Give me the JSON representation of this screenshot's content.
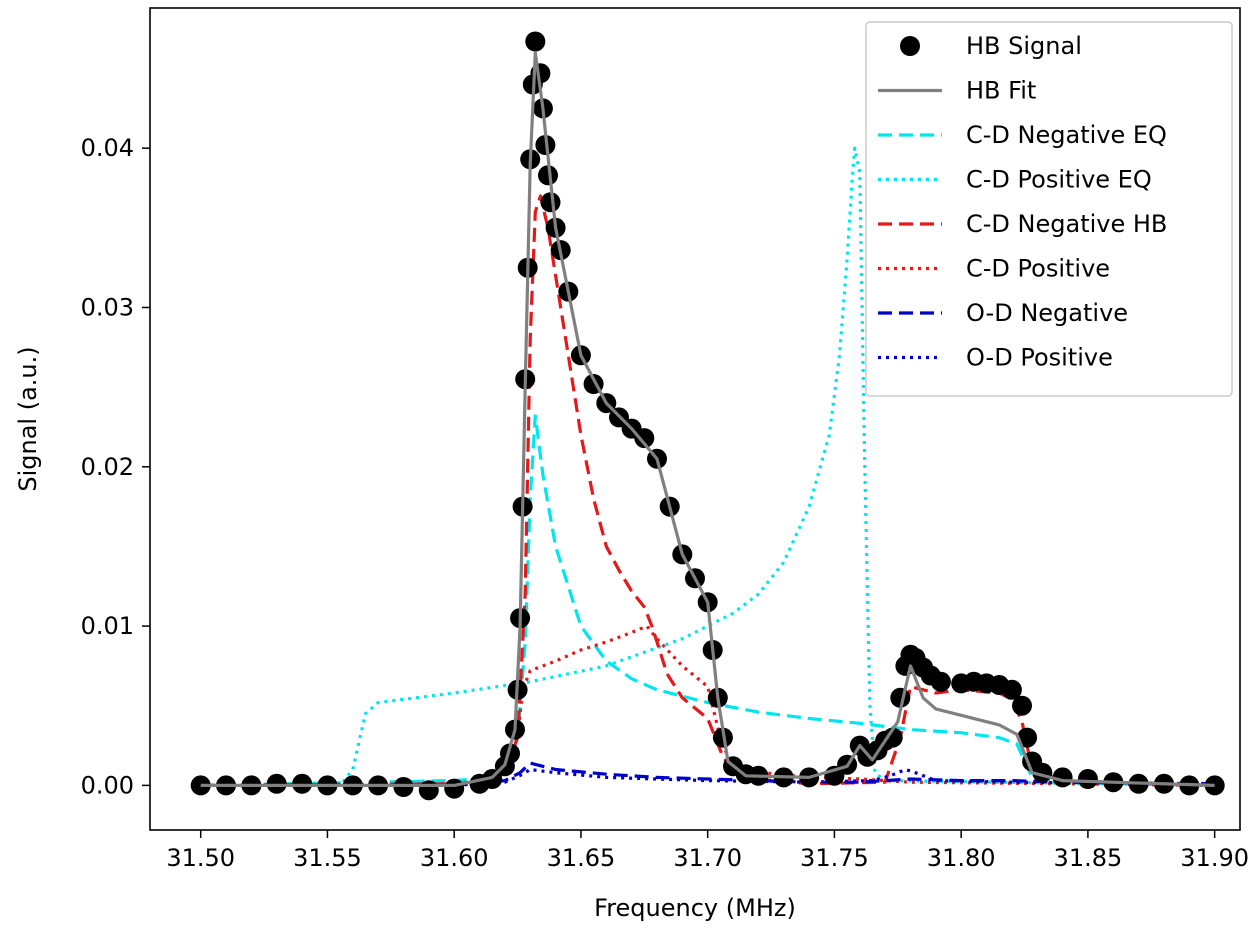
{
  "chart_data": {
    "type": "scatter",
    "xlabel": "Frequency (MHz)",
    "ylabel": "Signal (a.u.)",
    "xlim": [
      31.48,
      31.91
    ],
    "ylim": [
      -0.0028,
      0.0488
    ],
    "x_ticks": [
      31.5,
      31.55,
      31.6,
      31.65,
      31.7,
      31.75,
      31.8,
      31.85,
      31.9
    ],
    "x_tick_labels": [
      "31.50",
      "31.55",
      "31.60",
      "31.65",
      "31.70",
      "31.75",
      "31.80",
      "31.85",
      "31.90"
    ],
    "y_ticks": [
      0.0,
      0.01,
      0.02,
      0.03,
      0.04
    ],
    "y_tick_labels": [
      "0.00",
      "0.01",
      "0.02",
      "0.03",
      "0.04"
    ],
    "grid": false,
    "legend_position": "top-right",
    "series": [
      {
        "name": "HB Signal",
        "kind": "scatter",
        "color": "#000000",
        "points": [
          [
            31.5,
            0.0
          ],
          [
            31.51,
            0.0
          ],
          [
            31.52,
            0.0
          ],
          [
            31.53,
            0.0001
          ],
          [
            31.54,
            0.0001
          ],
          [
            31.55,
            0.0
          ],
          [
            31.56,
            0.0
          ],
          [
            31.57,
            0.0
          ],
          [
            31.58,
            -0.0001
          ],
          [
            31.59,
            -0.0003
          ],
          [
            31.6,
            -0.0002
          ],
          [
            31.61,
            0.0001
          ],
          [
            31.615,
            0.0004
          ],
          [
            31.62,
            0.0012
          ],
          [
            31.622,
            0.002
          ],
          [
            31.624,
            0.0035
          ],
          [
            31.625,
            0.006
          ],
          [
            31.626,
            0.0105
          ],
          [
            31.627,
            0.0175
          ],
          [
            31.628,
            0.0255
          ],
          [
            31.629,
            0.0325
          ],
          [
            31.63,
            0.0393
          ],
          [
            31.631,
            0.044
          ],
          [
            31.632,
            0.0467
          ],
          [
            31.634,
            0.0447
          ],
          [
            31.635,
            0.0425
          ],
          [
            31.636,
            0.0402
          ],
          [
            31.637,
            0.0383
          ],
          [
            31.638,
            0.0366
          ],
          [
            31.64,
            0.035
          ],
          [
            31.642,
            0.0336
          ],
          [
            31.645,
            0.031
          ],
          [
            31.65,
            0.027
          ],
          [
            31.655,
            0.0252
          ],
          [
            31.66,
            0.024
          ],
          [
            31.665,
            0.0231
          ],
          [
            31.67,
            0.0224
          ],
          [
            31.675,
            0.0218
          ],
          [
            31.68,
            0.0205
          ],
          [
            31.685,
            0.0175
          ],
          [
            31.69,
            0.0145
          ],
          [
            31.695,
            0.013
          ],
          [
            31.7,
            0.0115
          ],
          [
            31.702,
            0.0085
          ],
          [
            31.704,
            0.0055
          ],
          [
            31.706,
            0.003
          ],
          [
            31.71,
            0.0012
          ],
          [
            31.715,
            0.0007
          ],
          [
            31.72,
            0.0006
          ],
          [
            31.73,
            0.0005
          ],
          [
            31.74,
            0.0005
          ],
          [
            31.75,
            0.0006
          ],
          [
            31.755,
            0.0013
          ],
          [
            31.76,
            0.0025
          ],
          [
            31.763,
            0.0018
          ],
          [
            31.767,
            0.0022
          ],
          [
            31.77,
            0.0028
          ],
          [
            31.773,
            0.003
          ],
          [
            31.776,
            0.0055
          ],
          [
            31.778,
            0.0075
          ],
          [
            31.78,
            0.0082
          ],
          [
            31.782,
            0.008
          ],
          [
            31.785,
            0.0074
          ],
          [
            31.788,
            0.0069
          ],
          [
            31.792,
            0.0065
          ],
          [
            31.8,
            0.0064
          ],
          [
            31.805,
            0.0065
          ],
          [
            31.81,
            0.0064
          ],
          [
            31.815,
            0.0063
          ],
          [
            31.82,
            0.006
          ],
          [
            31.824,
            0.005
          ],
          [
            31.826,
            0.003
          ],
          [
            31.828,
            0.0015
          ],
          [
            31.832,
            0.0008
          ],
          [
            31.84,
            0.0005
          ],
          [
            31.85,
            0.0004
          ],
          [
            31.86,
            0.0002
          ],
          [
            31.87,
            0.0001
          ],
          [
            31.88,
            0.0001
          ],
          [
            31.89,
            0.0
          ],
          [
            31.9,
            0.0
          ]
        ]
      },
      {
        "name": "HB Fit",
        "kind": "line",
        "dash": "solid",
        "color": "#808080",
        "points": [
          [
            31.5,
            0.0
          ],
          [
            31.6,
            0.0
          ],
          [
            31.615,
            0.0005
          ],
          [
            31.62,
            0.0013
          ],
          [
            31.624,
            0.0035
          ],
          [
            31.626,
            0.01
          ],
          [
            31.628,
            0.025
          ],
          [
            31.63,
            0.039
          ],
          [
            31.632,
            0.046
          ],
          [
            31.635,
            0.0425
          ],
          [
            31.64,
            0.035
          ],
          [
            31.645,
            0.031
          ],
          [
            31.65,
            0.027
          ],
          [
            31.66,
            0.024
          ],
          [
            31.67,
            0.0224
          ],
          [
            31.68,
            0.0205
          ],
          [
            31.69,
            0.0145
          ],
          [
            31.7,
            0.0115
          ],
          [
            31.704,
            0.0055
          ],
          [
            31.708,
            0.0015
          ],
          [
            31.715,
            0.0006
          ],
          [
            31.74,
            0.0005
          ],
          [
            31.755,
            0.0012
          ],
          [
            31.76,
            0.0025
          ],
          [
            31.765,
            0.0016
          ],
          [
            31.77,
            0.0028
          ],
          [
            31.775,
            0.004
          ],
          [
            31.78,
            0.0075
          ],
          [
            31.785,
            0.0055
          ],
          [
            31.79,
            0.0048
          ],
          [
            31.8,
            0.0044
          ],
          [
            31.815,
            0.0038
          ],
          [
            31.822,
            0.0032
          ],
          [
            31.828,
            0.0008
          ],
          [
            31.84,
            0.0003
          ],
          [
            31.9,
            0.0
          ]
        ]
      },
      {
        "name": "C-D Negative EQ",
        "kind": "line",
        "dash": "dashed",
        "color": "#00e5ee",
        "points": [
          [
            31.5,
            0.0
          ],
          [
            31.6,
            0.0003
          ],
          [
            31.615,
            0.0005
          ],
          [
            31.62,
            0.0011
          ],
          [
            31.625,
            0.003
          ],
          [
            31.628,
            0.009
          ],
          [
            31.63,
            0.018
          ],
          [
            31.632,
            0.0232
          ],
          [
            31.635,
            0.0195
          ],
          [
            31.64,
            0.015
          ],
          [
            31.645,
            0.0125
          ],
          [
            31.65,
            0.01
          ],
          [
            31.66,
            0.0078
          ],
          [
            31.67,
            0.0067
          ],
          [
            31.68,
            0.006
          ],
          [
            31.7,
            0.0052
          ],
          [
            31.72,
            0.0046
          ],
          [
            31.74,
            0.0042
          ],
          [
            31.76,
            0.0039
          ],
          [
            31.78,
            0.0035
          ],
          [
            31.8,
            0.0033
          ],
          [
            31.815,
            0.003
          ],
          [
            31.822,
            0.0026
          ],
          [
            31.828,
            0.0005
          ],
          [
            31.84,
            0.0002
          ],
          [
            31.9,
            0.0
          ]
        ]
      },
      {
        "name": "C-D Positive EQ",
        "kind": "line",
        "dash": "dotted",
        "color": "#00e5ee",
        "points": [
          [
            31.5,
            0.0
          ],
          [
            31.555,
            0.0
          ],
          [
            31.56,
            0.001
          ],
          [
            31.565,
            0.0045
          ],
          [
            31.57,
            0.0052
          ],
          [
            31.6,
            0.0058
          ],
          [
            31.63,
            0.0065
          ],
          [
            31.66,
            0.0075
          ],
          [
            31.69,
            0.0092
          ],
          [
            31.71,
            0.0108
          ],
          [
            31.72,
            0.012
          ],
          [
            31.73,
            0.014
          ],
          [
            31.74,
            0.0175
          ],
          [
            31.748,
            0.022
          ],
          [
            31.752,
            0.027
          ],
          [
            31.755,
            0.033
          ],
          [
            31.757,
            0.038
          ],
          [
            31.758,
            0.04
          ],
          [
            31.76,
            0.0385
          ],
          [
            31.762,
            0.02
          ],
          [
            31.764,
            0.005
          ],
          [
            31.766,
            0.0008
          ],
          [
            31.77,
            0.0003
          ],
          [
            31.9,
            0.0
          ]
        ]
      },
      {
        "name": "C-D Negative HB",
        "kind": "line",
        "dash": "dashed",
        "color": "#e31a1c",
        "points": [
          [
            31.5,
            0.0
          ],
          [
            31.6,
            0.0001
          ],
          [
            31.615,
            0.0003
          ],
          [
            31.62,
            0.0008
          ],
          [
            31.625,
            0.003
          ],
          [
            31.628,
            0.012
          ],
          [
            31.63,
            0.028
          ],
          [
            31.632,
            0.036
          ],
          [
            31.634,
            0.037
          ],
          [
            31.637,
            0.035
          ],
          [
            31.64,
            0.032
          ],
          [
            31.645,
            0.027
          ],
          [
            31.65,
            0.022
          ],
          [
            31.655,
            0.018
          ],
          [
            31.66,
            0.015
          ],
          [
            31.665,
            0.0135
          ],
          [
            31.67,
            0.0122
          ],
          [
            31.675,
            0.0112
          ],
          [
            31.678,
            0.01
          ],
          [
            31.68,
            0.009
          ],
          [
            31.684,
            0.007
          ],
          [
            31.69,
            0.0055
          ],
          [
            31.7,
            0.0042
          ],
          [
            31.706,
            0.0018
          ],
          [
            31.712,
            0.0005
          ],
          [
            31.74,
            0.0001
          ],
          [
            31.77,
            0.0002
          ],
          [
            31.776,
            0.003
          ],
          [
            31.78,
            0.0062
          ],
          [
            31.79,
            0.0058
          ],
          [
            31.8,
            0.006
          ],
          [
            31.815,
            0.0058
          ],
          [
            31.82,
            0.0054
          ],
          [
            31.824,
            0.004
          ],
          [
            31.828,
            0.001
          ],
          [
            31.84,
            0.0003
          ],
          [
            31.9,
            0.0
          ]
        ]
      },
      {
        "name": "C-D Positive",
        "kind": "line",
        "dash": "dotted",
        "color": "#e31a1c",
        "points": [
          [
            31.5,
            0.0
          ],
          [
            31.6,
            0.0001
          ],
          [
            31.615,
            0.0004
          ],
          [
            31.62,
            0.001
          ],
          [
            31.625,
            0.003
          ],
          [
            31.627,
            0.006
          ],
          [
            31.63,
            0.0072
          ],
          [
            31.64,
            0.0078
          ],
          [
            31.65,
            0.0085
          ],
          [
            31.66,
            0.009
          ],
          [
            31.67,
            0.0096
          ],
          [
            31.676,
            0.01
          ],
          [
            31.68,
            0.0092
          ],
          [
            31.69,
            0.0075
          ],
          [
            31.7,
            0.0062
          ],
          [
            31.705,
            0.003
          ],
          [
            31.71,
            0.001
          ],
          [
            31.74,
            0.0005
          ],
          [
            31.76,
            0.0004
          ],
          [
            31.77,
            0.0003
          ],
          [
            31.78,
            0.0002
          ],
          [
            31.9,
            0.0
          ]
        ]
      },
      {
        "name": "O-D Negative",
        "kind": "line",
        "dash": "dashed",
        "color": "#0000cc",
        "points": [
          [
            31.5,
            0.0
          ],
          [
            31.6,
            0.0
          ],
          [
            31.62,
            0.0003
          ],
          [
            31.626,
            0.0008
          ],
          [
            31.63,
            0.0014
          ],
          [
            31.64,
            0.001
          ],
          [
            31.66,
            0.0007
          ],
          [
            31.68,
            0.0005
          ],
          [
            31.7,
            0.0004
          ],
          [
            31.72,
            0.0003
          ],
          [
            31.74,
            0.0002
          ],
          [
            31.76,
            0.0002
          ],
          [
            31.78,
            0.0004
          ],
          [
            31.8,
            0.0003
          ],
          [
            31.82,
            0.0003
          ],
          [
            31.84,
            0.0002
          ],
          [
            31.9,
            0.0001
          ]
        ]
      },
      {
        "name": "O-D Positive",
        "kind": "line",
        "dash": "dotted",
        "color": "#0000cc",
        "points": [
          [
            31.5,
            0.0
          ],
          [
            31.6,
            0.0
          ],
          [
            31.62,
            0.0002
          ],
          [
            31.627,
            0.0007
          ],
          [
            31.63,
            0.001
          ],
          [
            31.64,
            0.0008
          ],
          [
            31.66,
            0.0005
          ],
          [
            31.7,
            0.0003
          ],
          [
            31.74,
            0.0002
          ],
          [
            31.765,
            0.0003
          ],
          [
            31.772,
            0.0006
          ],
          [
            31.778,
            0.001
          ],
          [
            31.782,
            0.0008
          ],
          [
            31.79,
            0.0003
          ],
          [
            31.82,
            0.0002
          ],
          [
            31.9,
            0.0001
          ]
        ]
      }
    ]
  }
}
